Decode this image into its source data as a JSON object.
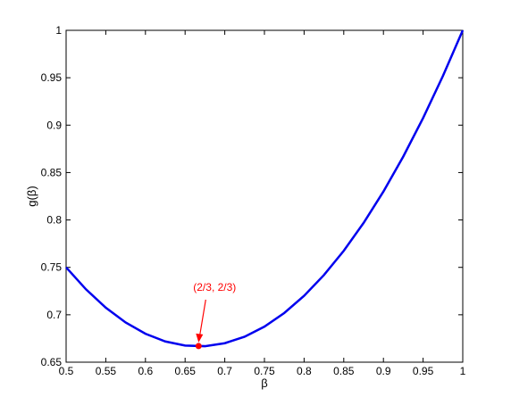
{
  "chart_data": {
    "type": "line",
    "xlabel": "β",
    "ylabel": "g(β)",
    "x": [
      0.5,
      0.525,
      0.55,
      0.575,
      0.6,
      0.625,
      0.65,
      0.675,
      0.7,
      0.725,
      0.75,
      0.775,
      0.8,
      0.825,
      0.85,
      0.875,
      0.9,
      0.925,
      0.95,
      0.975,
      1
    ],
    "series": [
      {
        "color": "#0000ee",
        "values": [
          0.75,
          0.726875,
          0.7075,
          0.691875,
          0.68,
          0.671875,
          0.6675,
          0.666875,
          0.67,
          0.676875,
          0.6875,
          0.701875,
          0.72,
          0.741875,
          0.7675,
          0.796875,
          0.83,
          0.866875,
          0.9075,
          0.951875,
          1
        ]
      }
    ],
    "xlim": [
      0.5,
      1
    ],
    "ylim": [
      0.65,
      1
    ],
    "xticks": [
      0.5,
      0.55,
      0.6,
      0.65,
      0.7,
      0.75,
      0.8,
      0.85,
      0.9,
      0.95,
      1
    ],
    "yticks": [
      0.65,
      0.7,
      0.75,
      0.8,
      0.85,
      0.9,
      0.95,
      1
    ],
    "annotation": {
      "text": "(2/3, 2/3)",
      "x": 0.667,
      "y": 0.667,
      "color": "#ff0000"
    }
  }
}
